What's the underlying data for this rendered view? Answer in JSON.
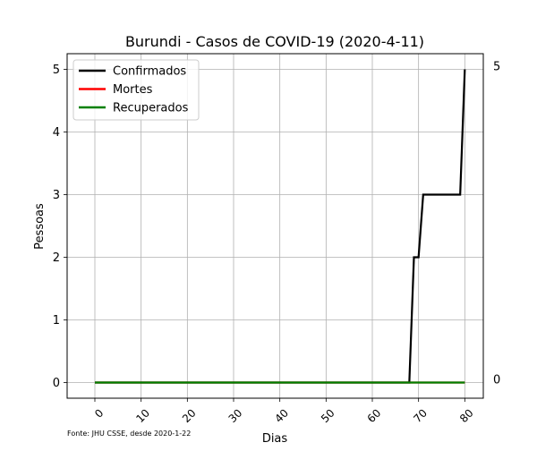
{
  "chart_data": {
    "type": "line",
    "title": "Burundi - Casos de COVID-19 (2020-4-11)",
    "xlabel": "Dias",
    "ylabel": "Pessoas",
    "footnote": "Fonte: JHU CSSE, desde 2020-1-22",
    "xlim": [
      -6,
      84
    ],
    "ylim": [
      -0.25,
      5.25
    ],
    "xticks": [
      0,
      10,
      20,
      30,
      40,
      50,
      60,
      70,
      80
    ],
    "yticks": [
      0,
      1,
      2,
      3,
      4,
      5
    ],
    "right_labels": [
      "5",
      "0"
    ],
    "right_label_values": [
      5,
      0
    ],
    "grid": true,
    "legend_position": "upper-left",
    "series": [
      {
        "name": "Confirmados",
        "color": "#000000",
        "x": [
          0,
          68,
          69,
          70,
          71,
          79,
          80
        ],
        "y": [
          0,
          0,
          2,
          2,
          3,
          3,
          5
        ]
      },
      {
        "name": "Mortes",
        "color": "#ff0000",
        "x": [
          0,
          80
        ],
        "y": [
          0,
          0
        ]
      },
      {
        "name": "Recuperados",
        "color": "#008000",
        "x": [
          0,
          80
        ],
        "y": [
          0,
          0
        ]
      }
    ]
  }
}
